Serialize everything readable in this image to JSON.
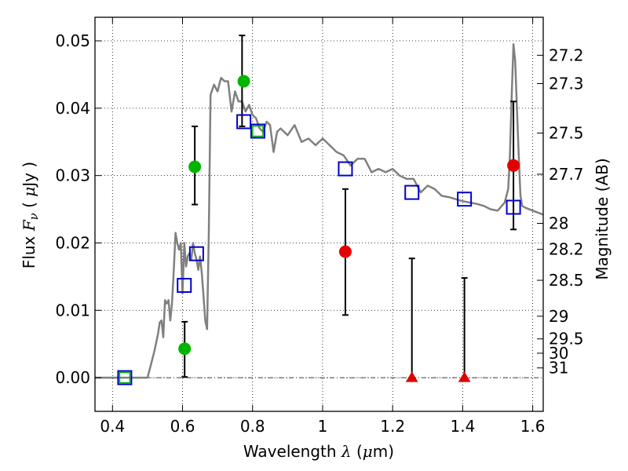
{
  "chart_data": {
    "type": "scatter",
    "xlabel": "Wavelength  λ (μm)",
    "xlabel_parts": [
      "Wavelength  ",
      "λ",
      " (",
      "μ",
      "m)"
    ],
    "ylabel": "Flux  Fν  ( μJy )",
    "ylabel_parts": [
      "Flux  ",
      "F",
      "ν",
      "  ( ",
      "μ",
      "Jy )"
    ],
    "y2label": "Magnitude (AB)",
    "xlim": [
      0.35,
      1.63
    ],
    "ylim": [
      -0.005,
      0.0535
    ],
    "grid": true,
    "xticks": [
      "0.4",
      "0.6",
      "0.8",
      "1",
      "1.2",
      "1.4",
      "1.6"
    ],
    "yticks": [
      "0.00",
      "0.01",
      "0.02",
      "0.03",
      "0.04",
      "0.05"
    ],
    "mag_ticks": [
      "27.2",
      "27.3",
      "27.5",
      "27.7",
      "28",
      "28.2",
      "28.5",
      "29",
      "29.5",
      "30",
      "31"
    ],
    "colors": {
      "sed": "#808080",
      "model_box": "#0000cc",
      "green": "#00b400",
      "red": "#e00000",
      "errorbar": "#000000"
    },
    "series": [
      {
        "name": "model SED",
        "style": "line",
        "x": [
          0.35,
          0.5,
          0.51,
          0.52,
          0.53,
          0.535,
          0.54,
          0.545,
          0.55,
          0.555,
          0.56,
          0.565,
          0.57,
          0.575,
          0.58,
          0.585,
          0.59,
          0.595,
          0.6,
          0.605,
          0.61,
          0.615,
          0.62,
          0.625,
          0.63,
          0.635,
          0.64,
          0.645,
          0.65,
          0.655,
          0.66,
          0.665,
          0.67,
          0.675,
          0.68,
          0.69,
          0.7,
          0.71,
          0.72,
          0.73,
          0.74,
          0.75,
          0.76,
          0.77,
          0.78,
          0.79,
          0.8,
          0.81,
          0.82,
          0.83,
          0.84,
          0.85,
          0.86,
          0.87,
          0.88,
          0.9,
          0.92,
          0.94,
          0.96,
          0.98,
          1.0,
          1.02,
          1.04,
          1.06,
          1.08,
          1.1,
          1.12,
          1.14,
          1.16,
          1.18,
          1.2,
          1.22,
          1.24,
          1.26,
          1.28,
          1.3,
          1.32,
          1.34,
          1.36,
          1.38,
          1.4,
          1.42,
          1.44,
          1.46,
          1.48,
          1.5,
          1.52,
          1.53,
          1.535,
          1.54,
          1.545,
          1.55,
          1.555,
          1.56,
          1.565,
          1.57,
          1.58,
          1.6,
          1.63
        ],
        "values": [
          0.0,
          0.0,
          0.002,
          0.004,
          0.0065,
          0.0082,
          0.0085,
          0.006,
          0.0115,
          0.011,
          0.0115,
          0.0085,
          0.011,
          0.016,
          0.0215,
          0.02,
          0.019,
          0.02,
          0.0125,
          0.02,
          0.0165,
          0.018,
          0.0185,
          0.0175,
          0.02,
          0.0185,
          0.0175,
          0.016,
          0.018,
          0.0155,
          0.012,
          0.0085,
          0.0072,
          0.0215,
          0.042,
          0.0435,
          0.0425,
          0.0445,
          0.044,
          0.044,
          0.0395,
          0.0425,
          0.041,
          0.041,
          0.0395,
          0.0405,
          0.039,
          0.0385,
          0.037,
          0.0365,
          0.038,
          0.0375,
          0.0335,
          0.0365,
          0.037,
          0.036,
          0.0375,
          0.035,
          0.0355,
          0.0345,
          0.0355,
          0.0345,
          0.0335,
          0.033,
          0.0315,
          0.0325,
          0.0325,
          0.0305,
          0.031,
          0.0305,
          0.031,
          0.03,
          0.0295,
          0.0295,
          0.0275,
          0.0285,
          0.028,
          0.027,
          0.0268,
          0.0265,
          0.0262,
          0.026,
          0.0258,
          0.0255,
          0.025,
          0.0248,
          0.026,
          0.028,
          0.033,
          0.042,
          0.0495,
          0.047,
          0.04,
          0.033,
          0.027,
          0.0255,
          0.0252,
          0.0248,
          0.0242
        ]
      },
      {
        "name": "model photometry",
        "style": "open-square",
        "x": [
          0.435,
          0.605,
          0.64,
          0.775,
          0.815,
          1.065,
          1.255,
          1.405,
          1.545
        ],
        "values": [
          0.0,
          0.0137,
          0.0184,
          0.038,
          0.0366,
          0.031,
          0.0275,
          0.0265,
          0.0253
        ]
      },
      {
        "name": "observed (green)",
        "style": "circle",
        "x": [
          0.606,
          0.635,
          0.775
        ],
        "values": [
          0.0043,
          0.0313,
          0.044
        ],
        "err_low": [
          0.0001,
          0.0257,
          null
        ],
        "err_high": [
          0.0083,
          0.0373,
          null
        ]
      },
      {
        "name": "observed (red)",
        "style": "circle",
        "x": [
          1.065,
          1.545
        ],
        "values": [
          0.0187,
          0.0315
        ],
        "err_low": [
          0.0093,
          0.022
        ],
        "err_high": [
          0.028,
          0.041
        ]
      },
      {
        "name": "upper limits (red)",
        "style": "triangle",
        "x": [
          1.255,
          1.405
        ],
        "values": [
          0.0,
          0.0
        ],
        "err_high": [
          0.0177,
          0.0148
        ]
      },
      {
        "name": "error bar",
        "style": "errorbar",
        "x": [
          0.77
        ],
        "err_low": [
          0.0373
        ],
        "err_high": [
          0.0508
        ]
      },
      {
        "name": "green inside box",
        "style": "small-green-square",
        "x": [
          0.435,
          0.815
        ],
        "values": [
          0.0,
          0.0366
        ]
      }
    ]
  }
}
